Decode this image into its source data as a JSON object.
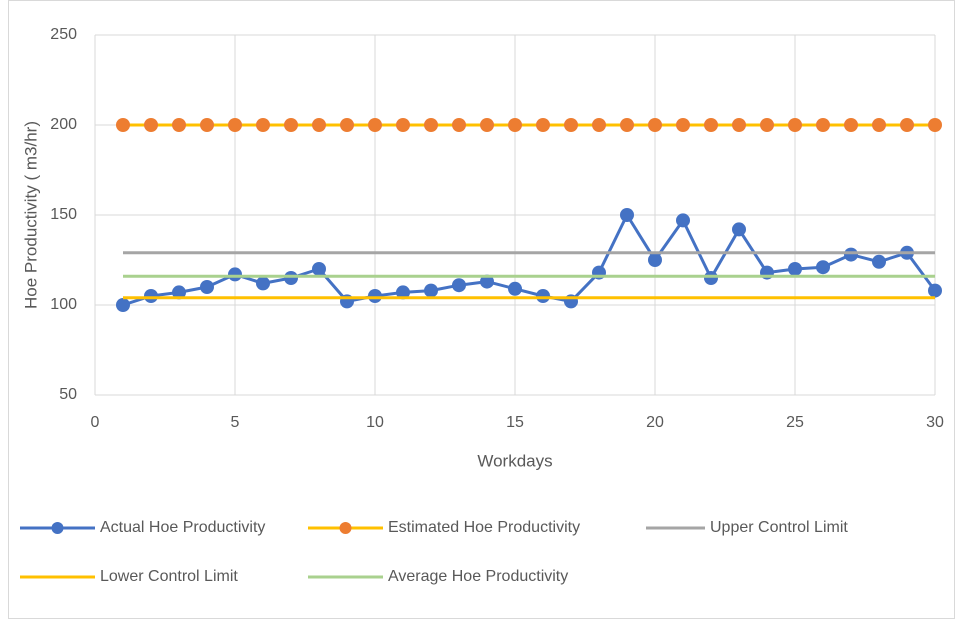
{
  "chart_data": {
    "type": "line",
    "x_label": "Workdays",
    "y_label": "Hoe Productivity ( m3/hr)",
    "x": [
      1,
      2,
      3,
      4,
      5,
      6,
      7,
      8,
      9,
      10,
      11,
      12,
      13,
      14,
      15,
      16,
      17,
      18,
      19,
      20,
      21,
      22,
      23,
      24,
      25,
      26,
      27,
      28,
      29,
      30
    ],
    "xlim": [
      0,
      30
    ],
    "xticks": [
      0,
      5,
      10,
      15,
      20,
      25,
      30
    ],
    "ylim": [
      50,
      250
    ],
    "yticks": [
      50,
      100,
      150,
      200,
      250
    ],
    "grid": true,
    "legend": "bottom",
    "series": [
      {
        "name": "Actual Hoe Productivity",
        "color": "#4472c4",
        "marker_color": "#4472c4",
        "marker": true,
        "values": [
          100,
          105,
          107,
          110,
          117,
          112,
          115,
          120,
          102,
          105,
          107,
          108,
          111,
          113,
          109,
          105,
          102,
          118,
          150,
          125,
          147,
          115,
          142,
          118,
          120,
          121,
          128,
          124,
          129,
          108
        ]
      },
      {
        "name": "Estimated Hoe Productivity",
        "color": "#ffc000",
        "marker_color": "#ed7d31",
        "marker": true,
        "values": [
          200,
          200,
          200,
          200,
          200,
          200,
          200,
          200,
          200,
          200,
          200,
          200,
          200,
          200,
          200,
          200,
          200,
          200,
          200,
          200,
          200,
          200,
          200,
          200,
          200,
          200,
          200,
          200,
          200,
          200
        ]
      },
      {
        "name": "Upper Control Limit",
        "color": "#a5a5a5",
        "marker": false,
        "values": [
          129,
          129,
          129,
          129,
          129,
          129,
          129,
          129,
          129,
          129,
          129,
          129,
          129,
          129,
          129,
          129,
          129,
          129,
          129,
          129,
          129,
          129,
          129,
          129,
          129,
          129,
          129,
          129,
          129,
          129
        ]
      },
      {
        "name": "Lower Control Limit",
        "color": "#ffc000",
        "marker": false,
        "values": [
          104,
          104,
          104,
          104,
          104,
          104,
          104,
          104,
          104,
          104,
          104,
          104,
          104,
          104,
          104,
          104,
          104,
          104,
          104,
          104,
          104,
          104,
          104,
          104,
          104,
          104,
          104,
          104,
          104,
          104
        ]
      },
      {
        "name": "Average Hoe Productivity",
        "color": "#a9d18e",
        "marker": false,
        "values": [
          116,
          116,
          116,
          116,
          116,
          116,
          116,
          116,
          116,
          116,
          116,
          116,
          116,
          116,
          116,
          116,
          116,
          116,
          116,
          116,
          116,
          116,
          116,
          116,
          116,
          116,
          116,
          116,
          116,
          116
        ]
      }
    ]
  }
}
